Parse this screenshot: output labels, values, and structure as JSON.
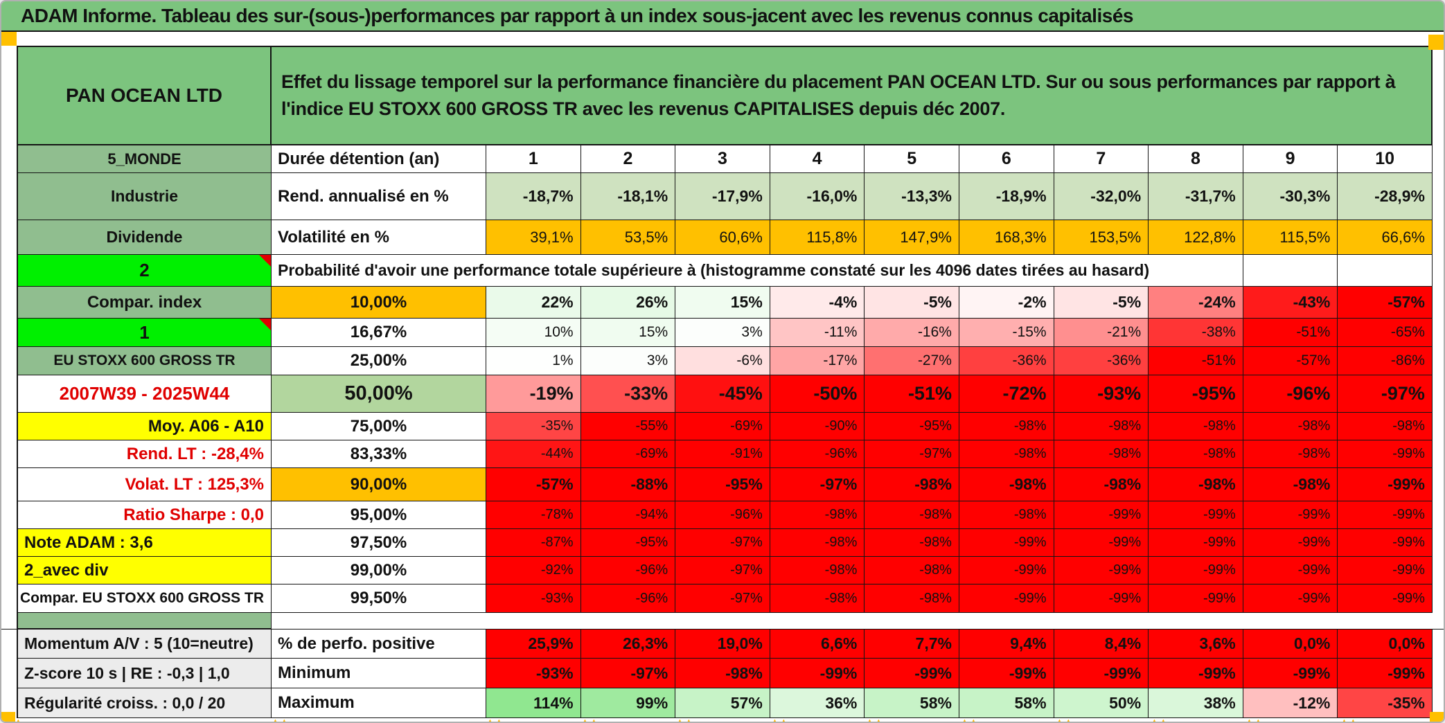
{
  "title": "ADAM Informe. Tableau des sur-(sous-)performances par rapport à un index sous-jacent avec les revenus connus capitalisés",
  "header": {
    "name": "PAN OCEAN LTD",
    "description": "Effet du lissage temporel sur la performance financière du placement PAN OCEAN LTD. Sur ou sous performances par rapport à l'indice EU STOXX 600 GROSS TR avec les revenus CAPITALISES depuis déc 2007."
  },
  "colors": {
    "green_header": "#7CC47E",
    "green_label": "#90BE8F",
    "bright_green": "#00F000",
    "orange": "#FFC000",
    "yellow": "#FFFF00",
    "red": "#FF0000",
    "sage_green": "#CFE2C0",
    "green_50": "#B2D69E",
    "gray_label": "#ECECEC",
    "accent_red_text": "#E00000",
    "marker_orange": "#FFB300"
  },
  "top_rows": [
    {
      "label": "5_MONDE",
      "metric": "Durée détention (an)",
      "values": [
        "1",
        "2",
        "3",
        "4",
        "5",
        "6",
        "7",
        "8",
        "9",
        "10"
      ]
    },
    {
      "label": "Industrie",
      "metric": "Rend. annualisé en %",
      "values": [
        "-18,7%",
        "-18,1%",
        "-17,9%",
        "-16,0%",
        "-13,3%",
        "-18,9%",
        "-32,0%",
        "-31,7%",
        "-30,3%",
        "-28,9%"
      ]
    },
    {
      "label": "Dividende",
      "metric": "Volatilité en %",
      "values": [
        "39,1%",
        "53,5%",
        "60,6%",
        "115,8%",
        "147,9%",
        "168,3%",
        "153,5%",
        "122,8%",
        "115,5%",
        "66,6%"
      ]
    }
  ],
  "probability_row": {
    "label": "2",
    "text": "Probabilité d'avoir une performance totale supérieure à (histogramme constaté sur les 4096 dates tirées au hasard)"
  },
  "percentile_rows": [
    {
      "label": "Compar. index",
      "percentile": "10,00%",
      "values": [
        22,
        26,
        15,
        -4,
        -5,
        -2,
        -5,
        -24,
        -43,
        -57
      ]
    },
    {
      "label": "1",
      "percentile": "16,67%",
      "values": [
        10,
        15,
        3,
        -11,
        -16,
        -15,
        -21,
        -38,
        -51,
        -65
      ]
    },
    {
      "label": "EU STOXX 600 GROSS TR",
      "percentile": "25,00%",
      "values": [
        1,
        3,
        -6,
        -17,
        -27,
        -36,
        -36,
        -51,
        -57,
        -86
      ]
    },
    {
      "label": "2007W39 - 2025W44",
      "percentile": "50,00%",
      "values": [
        -19,
        -33,
        -45,
        -50,
        -51,
        -72,
        -93,
        -95,
        -96,
        -97
      ]
    },
    {
      "label": "Moy. A06 - A10",
      "percentile": "75,00%",
      "values": [
        -35,
        -55,
        -69,
        -90,
        -95,
        -98,
        -98,
        -98,
        -98,
        -98
      ]
    },
    {
      "label": "Rend. LT :  -28,4%",
      "percentile": "83,33%",
      "values": [
        -44,
        -69,
        -91,
        -96,
        -97,
        -98,
        -98,
        -98,
        -98,
        -99
      ]
    },
    {
      "label": "Volat. LT :  125,3%",
      "percentile": "90,00%",
      "values": [
        -57,
        -88,
        -95,
        -97,
        -98,
        -98,
        -98,
        -98,
        -98,
        -99
      ]
    },
    {
      "label": "Ratio Sharpe :  0,0",
      "percentile": "95,00%",
      "values": [
        -78,
        -94,
        -96,
        -98,
        -98,
        -98,
        -99,
        -99,
        -99,
        -99
      ]
    },
    {
      "label": "Note ADAM : 3,6",
      "percentile": "97,50%",
      "values": [
        -87,
        -95,
        -97,
        -98,
        -98,
        -99,
        -99,
        -99,
        -99,
        -99
      ]
    },
    {
      "label": "2_avec div",
      "percentile": "99,00%",
      "values": [
        -92,
        -96,
        -97,
        -98,
        -98,
        -99,
        -99,
        -99,
        -99,
        -99
      ]
    },
    {
      "label": "Compar. EU STOXX 600 GROSS TR",
      "percentile": "99,50%",
      "values": [
        -93,
        -96,
        -97,
        -98,
        -98,
        -99,
        -99,
        -99,
        -99,
        -99
      ]
    }
  ],
  "footer_rows": [
    {
      "label": "Momentum A/V : 5 (10=neutre)",
      "metric": "% de perfo. positive",
      "values": [
        "25,9%",
        "26,3%",
        "19,0%",
        "6,6%",
        "7,7%",
        "9,4%",
        "8,4%",
        "3,6%",
        "0,0%",
        "0,0%"
      ]
    },
    {
      "label": "Z-score 10 s | RE : -0,3 | 1,0",
      "metric": "Minimum",
      "values": [
        "-93%",
        "-97%",
        "-98%",
        "-99%",
        "-99%",
        "-99%",
        "-99%",
        "-99%",
        "-99%",
        "-99%"
      ]
    },
    {
      "label": "Régularité croiss. : 0,0 / 20",
      "metric": "Maximum",
      "values": [
        114,
        99,
        57,
        36,
        58,
        58,
        50,
        38,
        -12,
        -35
      ]
    }
  ]
}
